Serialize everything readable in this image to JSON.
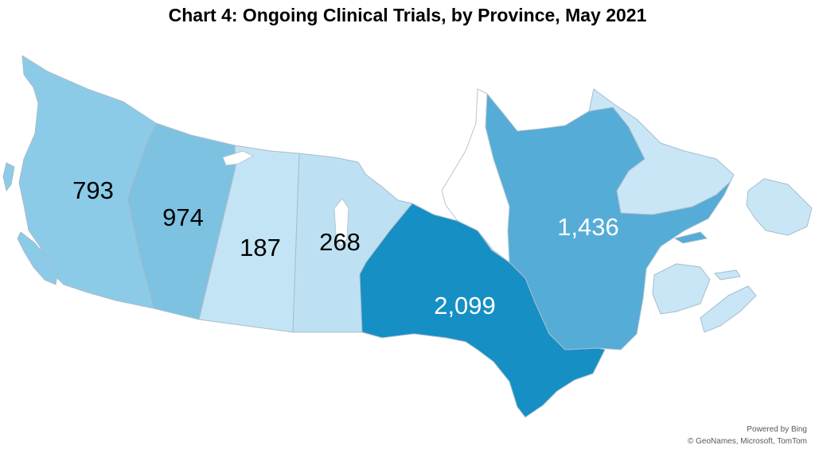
{
  "title": "Chart 4: Ongoing Clinical Trials, by Province, May 2021",
  "chart_data": {
    "type": "choropleth map",
    "regions": [
      {
        "name": "British Columbia",
        "value": 793,
        "label": "793",
        "color": "#8ccbe8"
      },
      {
        "name": "Alberta",
        "value": 974,
        "label": "974",
        "color": "#7ec2e2"
      },
      {
        "name": "Saskatchewan",
        "value": 187,
        "label": "187",
        "color": "#c3e4f4"
      },
      {
        "name": "Manitoba",
        "value": 268,
        "label": "268",
        "color": "#bde1f3"
      },
      {
        "name": "Ontario",
        "value": 2099,
        "label": "2,099",
        "color": "#168fc4"
      },
      {
        "name": "Quebec",
        "value": 1436,
        "label": "1,436",
        "color": "#55acd6"
      },
      {
        "name": "Newfoundland and Labrador",
        "value": null,
        "label": "",
        "color": "#c8e6f5"
      },
      {
        "name": "New Brunswick",
        "value": null,
        "label": "",
        "color": "#c8e6f5"
      },
      {
        "name": "Nova Scotia",
        "value": null,
        "label": "",
        "color": "#c8e6f5"
      },
      {
        "name": "Prince Edward Island",
        "value": null,
        "label": "",
        "color": "#c8e6f5"
      }
    ]
  },
  "attribution": {
    "line1": "Powered by Bing",
    "line2": "© GeoNames, Microsoft, TomTom"
  }
}
